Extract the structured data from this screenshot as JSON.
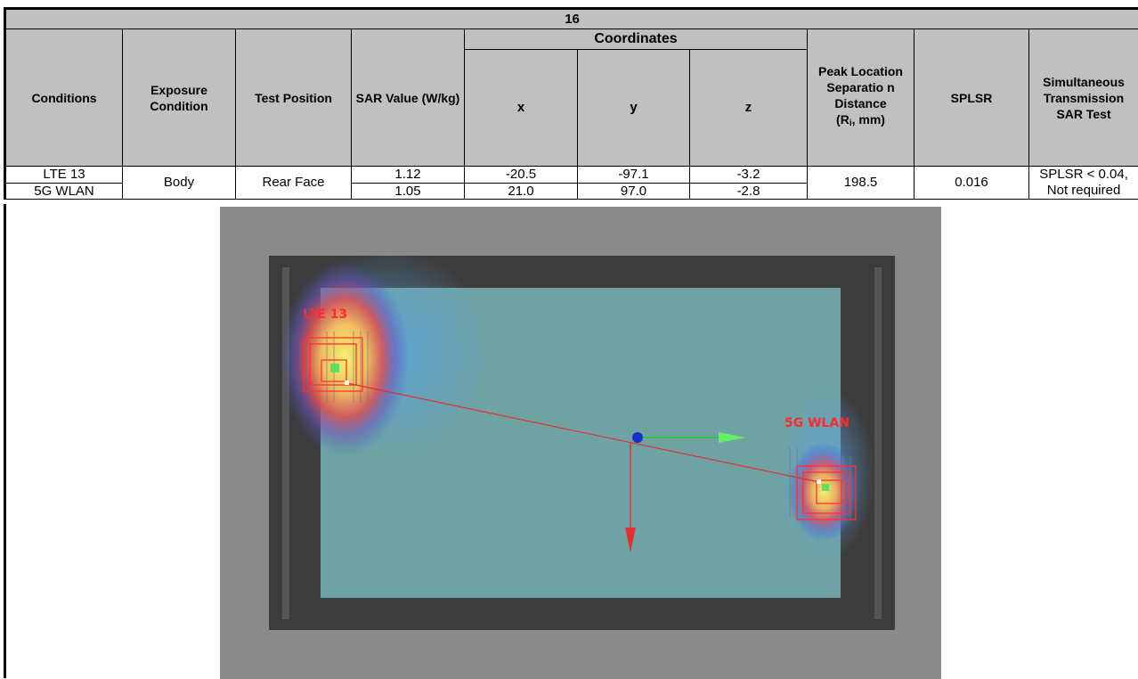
{
  "table": {
    "title": "16",
    "headers": {
      "conditions": "Conditions",
      "exposure_condition": "Exposure Condition",
      "test_position": "Test Position",
      "sar_value": "SAR Value (W/kg)",
      "coordinates": "Coordinates",
      "x": "x",
      "y": "y",
      "z": "z",
      "peak_distance_line1": "Peak Location Separatio n Distance",
      "peak_distance_line2_prefix": "(R",
      "peak_distance_line2_sub": "i",
      "peak_distance_line2_suffix": ", mm)",
      "splsr": "SPLSR",
      "simultaneous": "Simultaneous Transmission SAR Test"
    },
    "rows": [
      {
        "condition": "LTE 13",
        "sar": "1.12",
        "x": "-20.5",
        "y": "-97.1",
        "z": "-3.2"
      },
      {
        "condition": "5G WLAN",
        "sar": "1.05",
        "x": "21.0",
        "y": "97.0",
        "z": "-2.8"
      }
    ],
    "shared": {
      "exposure": "Body",
      "position": "Rear Face",
      "distance": "198.5",
      "splsr": "0.016",
      "result_line1": "SPLSR < 0.04,",
      "result_line2": "Not required"
    }
  },
  "sar_image": {
    "label_lte": "LTE 13",
    "label_wlan": "5G WLAN",
    "colors": {
      "label": "#ff2a2a",
      "device": "#6fa3a3",
      "frame": "#3c3c3c",
      "backdrop": "#8a8a8a",
      "separation_line": "#e03030",
      "x_axis": "#22cc22",
      "y_axis": "#e03030",
      "origin": "#1a2ecc"
    }
  }
}
